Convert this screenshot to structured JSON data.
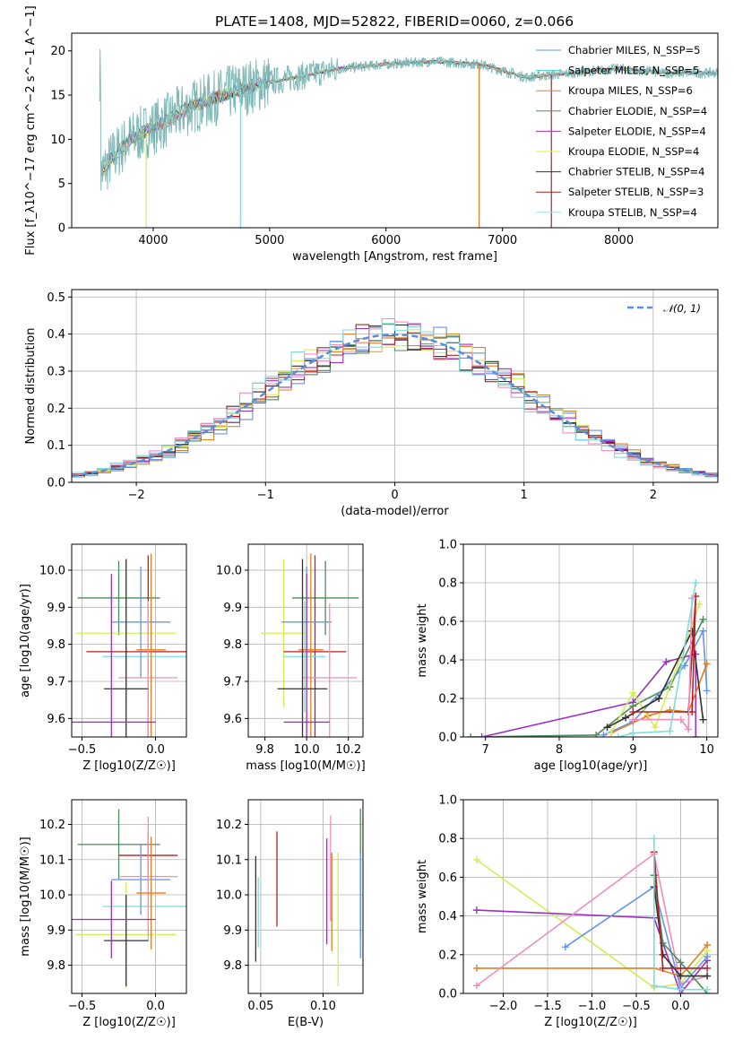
{
  "chart_data": [
    {
      "type": "line",
      "id": "spectrum",
      "title": "PLATE=1408, MJD=52822, FIBERID=0060, z=0.066",
      "xlabel": "wavelength [Angstrom, rest frame]",
      "ylabel": "Flux [f_λ10^−17 erg cm^−2 s^−1 A^−1]",
      "xlim": [
        3300,
        8850
      ],
      "ylim": [
        0,
        22
      ],
      "xticks": [
        4000,
        5000,
        6000,
        7000,
        8000
      ],
      "yticks": [
        0,
        5,
        10,
        15,
        20
      ],
      "grid": false,
      "legend_position": "top-right",
      "series": [
        {
          "name": "Chabrier MILES, N_SSP=5",
          "color": "#6495ED"
        },
        {
          "name": "Salpeter MILES, N_SSP=5",
          "color": "#48D1CC"
        },
        {
          "name": "Kroupa MILES, N_SSP=6",
          "color": "#E67E22"
        },
        {
          "name": "Chabrier ELODIE, N_SSP=4",
          "color": "#4E8B5A"
        },
        {
          "name": "Salpeter ELODIE, N_SSP=4",
          "color": "#9B30C4"
        },
        {
          "name": "Kroupa ELODIE, N_SSP=4",
          "color": "#F0E442"
        },
        {
          "name": "Chabrier STELIB, N_SSP=4",
          "color": "#333333"
        },
        {
          "name": "Salpeter STELIB, N_SSP=3",
          "color": "#B22222"
        },
        {
          "name": "Kroupa STELIB, N_SSP=4",
          "color": "#9FE0E8"
        }
      ],
      "continuum": {
        "x": [
          3550,
          3650,
          3800,
          3950,
          4100,
          4300,
          4500,
          4700,
          5000,
          5300,
          5600,
          6000,
          6400,
          6800,
          7200,
          7600,
          8000,
          8400,
          8850
        ],
        "y": [
          6,
          8,
          10,
          11,
          12,
          13.5,
          14.5,
          15.5,
          16.5,
          17.2,
          18,
          18.5,
          18.8,
          18.5,
          17,
          17.5,
          18,
          17.5,
          17.5
        ]
      },
      "data_color": "#808080",
      "model_color": "#7FDBDB"
    },
    {
      "type": "histogram",
      "id": "residuals",
      "xlabel": "(data-model)/error",
      "ylabel": "Normed distribution",
      "xlim": [
        -2.5,
        2.5
      ],
      "ylim": [
        0,
        0.52
      ],
      "xticks": [
        -2,
        -1,
        0,
        1,
        2
      ],
      "yticks": [
        0,
        0.1,
        0.2,
        0.3,
        0.4,
        0.5
      ],
      "grid": true,
      "legend": "𝒩(0, 1)",
      "legend_position": "top-right",
      "gauss_color": "#5B8DD9",
      "bin_width": 0.1,
      "hist_colors": [
        "#6495ED",
        "#E67E22",
        "#4E8B5A",
        "#9B30C4",
        "#D4EC56",
        "#333333",
        "#B22222",
        "#F28CC0",
        "#7FDBDB"
      ]
    },
    {
      "type": "errorbar",
      "id": "age-vs-z",
      "xlabel": "Z [log10(Z/Z☉)]",
      "ylabel": "age [log10(age/yr)]",
      "xlim": [
        -0.57,
        0.21
      ],
      "ylim": [
        9.55,
        10.07
      ],
      "xticks": [
        -0.5,
        0.0
      ],
      "yticks": [
        9.6,
        9.7,
        9.8,
        9.9,
        10.0
      ],
      "grid": true,
      "points": [
        {
          "x": -0.25,
          "xerr": 0.28,
          "y": 9.925,
          "yerr": 0.1,
          "color": "#4E8B5A"
        },
        {
          "x": -0.2,
          "xerr": 0.34,
          "y": 9.83,
          "yerr": 0.2,
          "color": "#D4EC56"
        },
        {
          "x": -0.05,
          "xerr": 0.42,
          "y": 9.78,
          "yerr": 0.26,
          "color": "#B22222"
        },
        {
          "x": -0.05,
          "xerr": 0.31,
          "y": 9.767,
          "yerr": 0.15,
          "color": "#7FDBDB"
        },
        {
          "x": -0.1,
          "xerr": 0.2,
          "y": 9.86,
          "yerr": 0.15,
          "color": "#6495ED"
        },
        {
          "x": -0.05,
          "xerr": 0.2,
          "y": 9.71,
          "yerr": 0.2,
          "color": "#F28CC0"
        },
        {
          "x": -0.03,
          "xerr": 0.1,
          "y": 9.785,
          "yerr": 0.26,
          "color": "#E67E22"
        },
        {
          "x": -0.2,
          "xerr": 0.15,
          "y": 9.68,
          "yerr": 0.35,
          "color": "#333333"
        },
        {
          "x": -0.3,
          "xerr": 0.3,
          "y": 9.59,
          "yerr": 0.4,
          "color": "#9B30C4"
        }
      ]
    },
    {
      "type": "errorbar",
      "id": "age-vs-mass",
      "xlabel": "mass [log10(M/M☉)]",
      "ylabel": "",
      "xlim": [
        9.72,
        10.27
      ],
      "ylim": [
        9.55,
        10.07
      ],
      "xticks": [
        9.8,
        10.0,
        10.2
      ],
      "yticks": [
        9.6,
        9.7,
        9.8,
        9.9,
        10.0
      ],
      "grid": true,
      "points": [
        {
          "x": 10.09,
          "xerr": 0.16,
          "y": 9.925,
          "yerr": 0.1,
          "color": "#4E8B5A"
        },
        {
          "x": 9.89,
          "xerr": 0.11,
          "y": 9.83,
          "yerr": 0.2,
          "color": "#D4EC56"
        },
        {
          "x": 10.04,
          "xerr": 0.15,
          "y": 9.78,
          "yerr": 0.26,
          "color": "#B22222"
        },
        {
          "x": 9.99,
          "xerr": 0.1,
          "y": 9.767,
          "yerr": 0.15,
          "color": "#7FDBDB"
        },
        {
          "x": 10.0,
          "xerr": 0.12,
          "y": 9.86,
          "yerr": 0.15,
          "color": "#6495ED"
        },
        {
          "x": 10.11,
          "xerr": 0.13,
          "y": 9.71,
          "yerr": 0.2,
          "color": "#F28CC0"
        },
        {
          "x": 10.02,
          "xerr": 0.06,
          "y": 9.785,
          "yerr": 0.26,
          "color": "#E67E22"
        },
        {
          "x": 9.98,
          "xerr": 0.12,
          "y": 9.68,
          "yerr": 0.35,
          "color": "#333333"
        },
        {
          "x": 10.0,
          "xerr": 0.11,
          "y": 9.59,
          "yerr": 0.4,
          "color": "#9B30C4"
        }
      ]
    },
    {
      "type": "line",
      "id": "weight-vs-age",
      "xlabel": "age [log10(age/yr)]",
      "ylabel": "mass weight",
      "xlim": [
        6.7,
        10.15
      ],
      "ylim": [
        0,
        1.0
      ],
      "xticks": [
        7,
        8,
        9,
        10
      ],
      "yticks": [
        0.0,
        0.2,
        0.4,
        0.6,
        0.8,
        1.0
      ],
      "grid": true,
      "series": [
        {
          "color": "#9B30C4",
          "x": [
            6.95,
            9.0,
            9.45,
            9.85,
            9.85
          ],
          "y": [
            0.0,
            0.18,
            0.39,
            0.43,
            0.0
          ]
        },
        {
          "color": "#4E8B5A",
          "x": [
            6.8,
            8.5,
            9.0,
            9.5,
            9.95
          ],
          "y": [
            0.0,
            0.01,
            0.16,
            0.26,
            0.61
          ]
        },
        {
          "color": "#6495ED",
          "x": [
            8.6,
            9.0,
            9.7,
            9.95,
            10.0
          ],
          "y": [
            0.01,
            0.08,
            0.37,
            0.55,
            0.24
          ]
        },
        {
          "color": "#E67E22",
          "x": [
            8.7,
            9.2,
            9.5,
            9.75,
            10.0
          ],
          "y": [
            0.02,
            0.11,
            0.14,
            0.13,
            0.38
          ]
        },
        {
          "color": "#D4EC56",
          "x": [
            8.7,
            9.0,
            9.3,
            9.9
          ],
          "y": [
            0.02,
            0.23,
            0.05,
            0.69
          ]
        },
        {
          "color": "#333333",
          "x": [
            8.65,
            8.9,
            9.35,
            9.8,
            9.95
          ],
          "y": [
            0.05,
            0.1,
            0.2,
            0.55,
            0.09
          ]
        },
        {
          "color": "#B22222",
          "x": [
            9.0,
            9.75,
            9.85,
            9.8
          ],
          "y": [
            0.13,
            0.13,
            0.73,
            0.13
          ]
        },
        {
          "color": "#F28CC0",
          "x": [
            9.0,
            9.65,
            9.75,
            9.8
          ],
          "y": [
            0.09,
            0.09,
            0.04,
            0.72
          ]
        },
        {
          "color": "#7FDBDB",
          "x": [
            8.8,
            9.0,
            9.5,
            9.85
          ],
          "y": [
            0.0,
            0.02,
            0.03,
            0.8
          ]
        }
      ]
    },
    {
      "type": "errorbar",
      "id": "mass-vs-z",
      "xlabel": "Z [log10(Z/Z☉)]",
      "ylabel": "mass [log10(M/M☉)]",
      "xlim": [
        -0.57,
        0.21
      ],
      "ylim": [
        9.72,
        10.27
      ],
      "xticks": [
        -0.5,
        0.0
      ],
      "yticks": [
        9.8,
        9.9,
        10.0,
        10.1,
        10.2
      ],
      "grid": true,
      "points": [
        {
          "x": -0.25,
          "xerr": 0.28,
          "y": 10.143,
          "yerr": 0.1,
          "color": "#4E8B5A"
        },
        {
          "x": -0.2,
          "xerr": 0.34,
          "y": 9.887,
          "yerr": 0.15,
          "color": "#D4EC56"
        },
        {
          "x": -0.05,
          "xerr": 0.2,
          "y": 10.112,
          "yerr": 0.07,
          "color": "#B22222"
        },
        {
          "x": -0.05,
          "xerr": 0.31,
          "y": 9.967,
          "yerr": 0.1,
          "color": "#7FDBDB"
        },
        {
          "x": -0.1,
          "xerr": 0.2,
          "y": 10.043,
          "yerr": 0.1,
          "color": "#6495ED"
        },
        {
          "x": -0.05,
          "xerr": 0.2,
          "y": 10.052,
          "yerr": 0.17,
          "color": "#F28CC0"
        },
        {
          "x": -0.03,
          "xerr": 0.1,
          "y": 10.005,
          "yerr": 0.16,
          "color": "#E67E22"
        },
        {
          "x": -0.2,
          "xerr": 0.15,
          "y": 9.87,
          "yerr": 0.13,
          "color": "#333333"
        },
        {
          "x": -0.3,
          "xerr": 0.3,
          "y": 9.93,
          "yerr": 0.11,
          "color": "#9B30C4"
        }
      ]
    },
    {
      "type": "errorbar",
      "id": "mass-vs-ebv",
      "xlabel": "E(B-V)",
      "ylabel": "",
      "xlim": [
        0.04,
        0.132
      ],
      "ylim": [
        9.72,
        10.27
      ],
      "xticks": [
        0.05,
        0.1
      ],
      "yticks": [
        9.8,
        9.9,
        10.0,
        10.1,
        10.2
      ],
      "grid": true,
      "points": [
        {
          "x": 0.046,
          "y": 9.96,
          "yerr": 0.15,
          "color": "#333333"
        },
        {
          "x": 0.048,
          "y": 9.95,
          "yerr": 0.1,
          "color": "#7FDBDB"
        },
        {
          "x": 0.063,
          "y": 10.045,
          "yerr": 0.135,
          "color": "#B22222"
        },
        {
          "x": 0.103,
          "y": 10.01,
          "yerr": 0.15,
          "color": "#9B30C4"
        },
        {
          "x": 0.106,
          "y": 10.075,
          "yerr": 0.15,
          "color": "#F28CC0"
        },
        {
          "x": 0.107,
          "y": 9.98,
          "yerr": 0.14,
          "color": "#E67E22"
        },
        {
          "x": 0.112,
          "y": 9.93,
          "yerr": 0.19,
          "color": "#D4EC56"
        },
        {
          "x": 0.13,
          "y": 10.065,
          "yerr": 0.18,
          "color": "#4E8B5A"
        },
        {
          "x": 0.13,
          "y": 9.97,
          "yerr": 0.15,
          "color": "#6495ED"
        }
      ]
    },
    {
      "type": "line",
      "id": "weight-vs-z",
      "xlabel": "Z [log10(Z/Z☉)]",
      "ylabel": "mass weight",
      "xlim": [
        -2.45,
        0.42
      ],
      "ylim": [
        0,
        1.0
      ],
      "xticks": [
        -2.0,
        -1.5,
        -1.0,
        -0.5,
        0.0
      ],
      "yticks": [
        0.0,
        0.2,
        0.4,
        0.6,
        0.8,
        1.0
      ],
      "grid": true,
      "series": [
        {
          "color": "#D4EC56",
          "x": [
            -2.3,
            -0.3,
            0.0,
            0.3
          ],
          "y": [
            0.69,
            0.03,
            0.05,
            0.22
          ]
        },
        {
          "color": "#9B30C4",
          "x": [
            -2.3,
            -0.3,
            0.0,
            0.3
          ],
          "y": [
            0.43,
            0.39,
            0.0,
            0.17
          ]
        },
        {
          "color": "#E67E22",
          "x": [
            -2.3,
            -0.3,
            0.0,
            0.3
          ],
          "y": [
            0.13,
            0.13,
            0.09,
            0.25
          ]
        },
        {
          "color": "#F28CC0",
          "x": [
            -2.3,
            -0.3,
            0.0,
            0.3
          ],
          "y": [
            0.04,
            0.72,
            0.05,
            0.09
          ]
        },
        {
          "color": "#6495ED",
          "x": [
            -1.3,
            -0.3,
            0.0,
            0.3
          ],
          "y": [
            0.24,
            0.55,
            0.03,
            0.19
          ]
        },
        {
          "color": "#4E8B5A",
          "x": [
            -0.3,
            -0.2,
            0.0,
            0.3
          ],
          "y": [
            0.61,
            0.26,
            0.16,
            0.0
          ]
        },
        {
          "color": "#333333",
          "x": [
            -0.3,
            -0.2,
            0.0,
            0.3
          ],
          "y": [
            0.55,
            0.2,
            0.09,
            0.09
          ]
        },
        {
          "color": "#B22222",
          "x": [
            -0.3,
            -0.2,
            0.0,
            0.3
          ],
          "y": [
            0.73,
            0.13,
            0.13,
            0.13
          ]
        },
        {
          "color": "#7FDBDB",
          "x": [
            -0.3,
            -0.3,
            0.0,
            0.3
          ],
          "y": [
            0.8,
            0.04,
            0.02,
            0.02
          ]
        }
      ]
    }
  ]
}
